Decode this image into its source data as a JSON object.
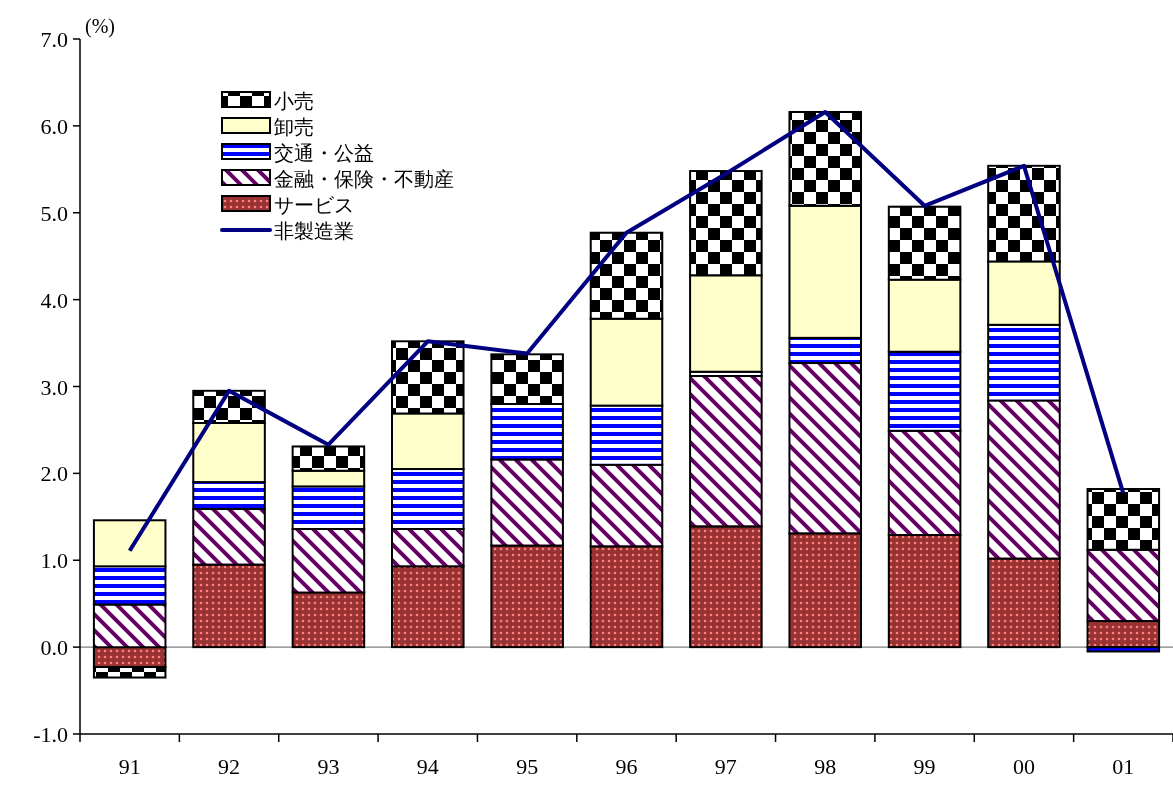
{
  "chart_data": {
    "type": "bar",
    "stacked": true,
    "ylabel": "(%)",
    "categories": [
      "91",
      "92",
      "93",
      "94",
      "95",
      "96",
      "97",
      "98",
      "99",
      "00",
      "01"
    ],
    "series": [
      {
        "name": "サービス",
        "color": "#993333",
        "values": [
          -0.23,
          0.95,
          0.63,
          0.93,
          1.17,
          1.16,
          1.39,
          1.31,
          1.29,
          1.02,
          0.3
        ]
      },
      {
        "name": "金融・保険・不動産",
        "color": "#660066",
        "values": [
          0.49,
          0.64,
          0.73,
          0.43,
          0.99,
          0.94,
          1.73,
          1.96,
          1.2,
          1.82,
          0.82
        ]
      },
      {
        "name": "交通・公益",
        "color": "#0000ff",
        "values": [
          0.44,
          0.31,
          0.49,
          0.69,
          0.64,
          0.68,
          0.05,
          0.29,
          0.91,
          0.87,
          -0.05
        ]
      },
      {
        "name": "卸売",
        "color": "#ffffcc",
        "values": [
          0.53,
          0.68,
          0.18,
          0.64,
          0,
          1.0,
          1.11,
          1.52,
          0.83,
          0.73,
          0
        ]
      },
      {
        "name": "小売",
        "color": "#000000",
        "values": [
          -0.12,
          0.37,
          0.28,
          0.83,
          0.57,
          0.99,
          1.2,
          1.08,
          0.84,
          1.1,
          0.7
        ]
      },
      {
        "name": "非製造業",
        "type": "line",
        "color": "#000080",
        "values": [
          1.11,
          2.95,
          2.33,
          3.52,
          3.38,
          4.77,
          5.45,
          6.16,
          5.08,
          5.54,
          1.77
        ]
      }
    ],
    "ylim": [
      -1,
      7
    ],
    "yticks": [
      {
        "value": -1,
        "label": "-1.0"
      },
      {
        "value": 0,
        "label": "0.0"
      },
      {
        "value": 1,
        "label": "1.0"
      },
      {
        "value": 2,
        "label": "2.0"
      },
      {
        "value": 3,
        "label": "3.0"
      },
      {
        "value": 4,
        "label": "4.0"
      },
      {
        "value": 5,
        "label": "5.0"
      },
      {
        "value": 6,
        "label": "6.0"
      },
      {
        "value": 7,
        "label": "7.0"
      }
    ],
    "ref_lines": [
      {
        "axis": "y",
        "value": 0,
        "color": "#808080"
      }
    ],
    "grid": false,
    "legend": "top left",
    "marker": "none"
  }
}
